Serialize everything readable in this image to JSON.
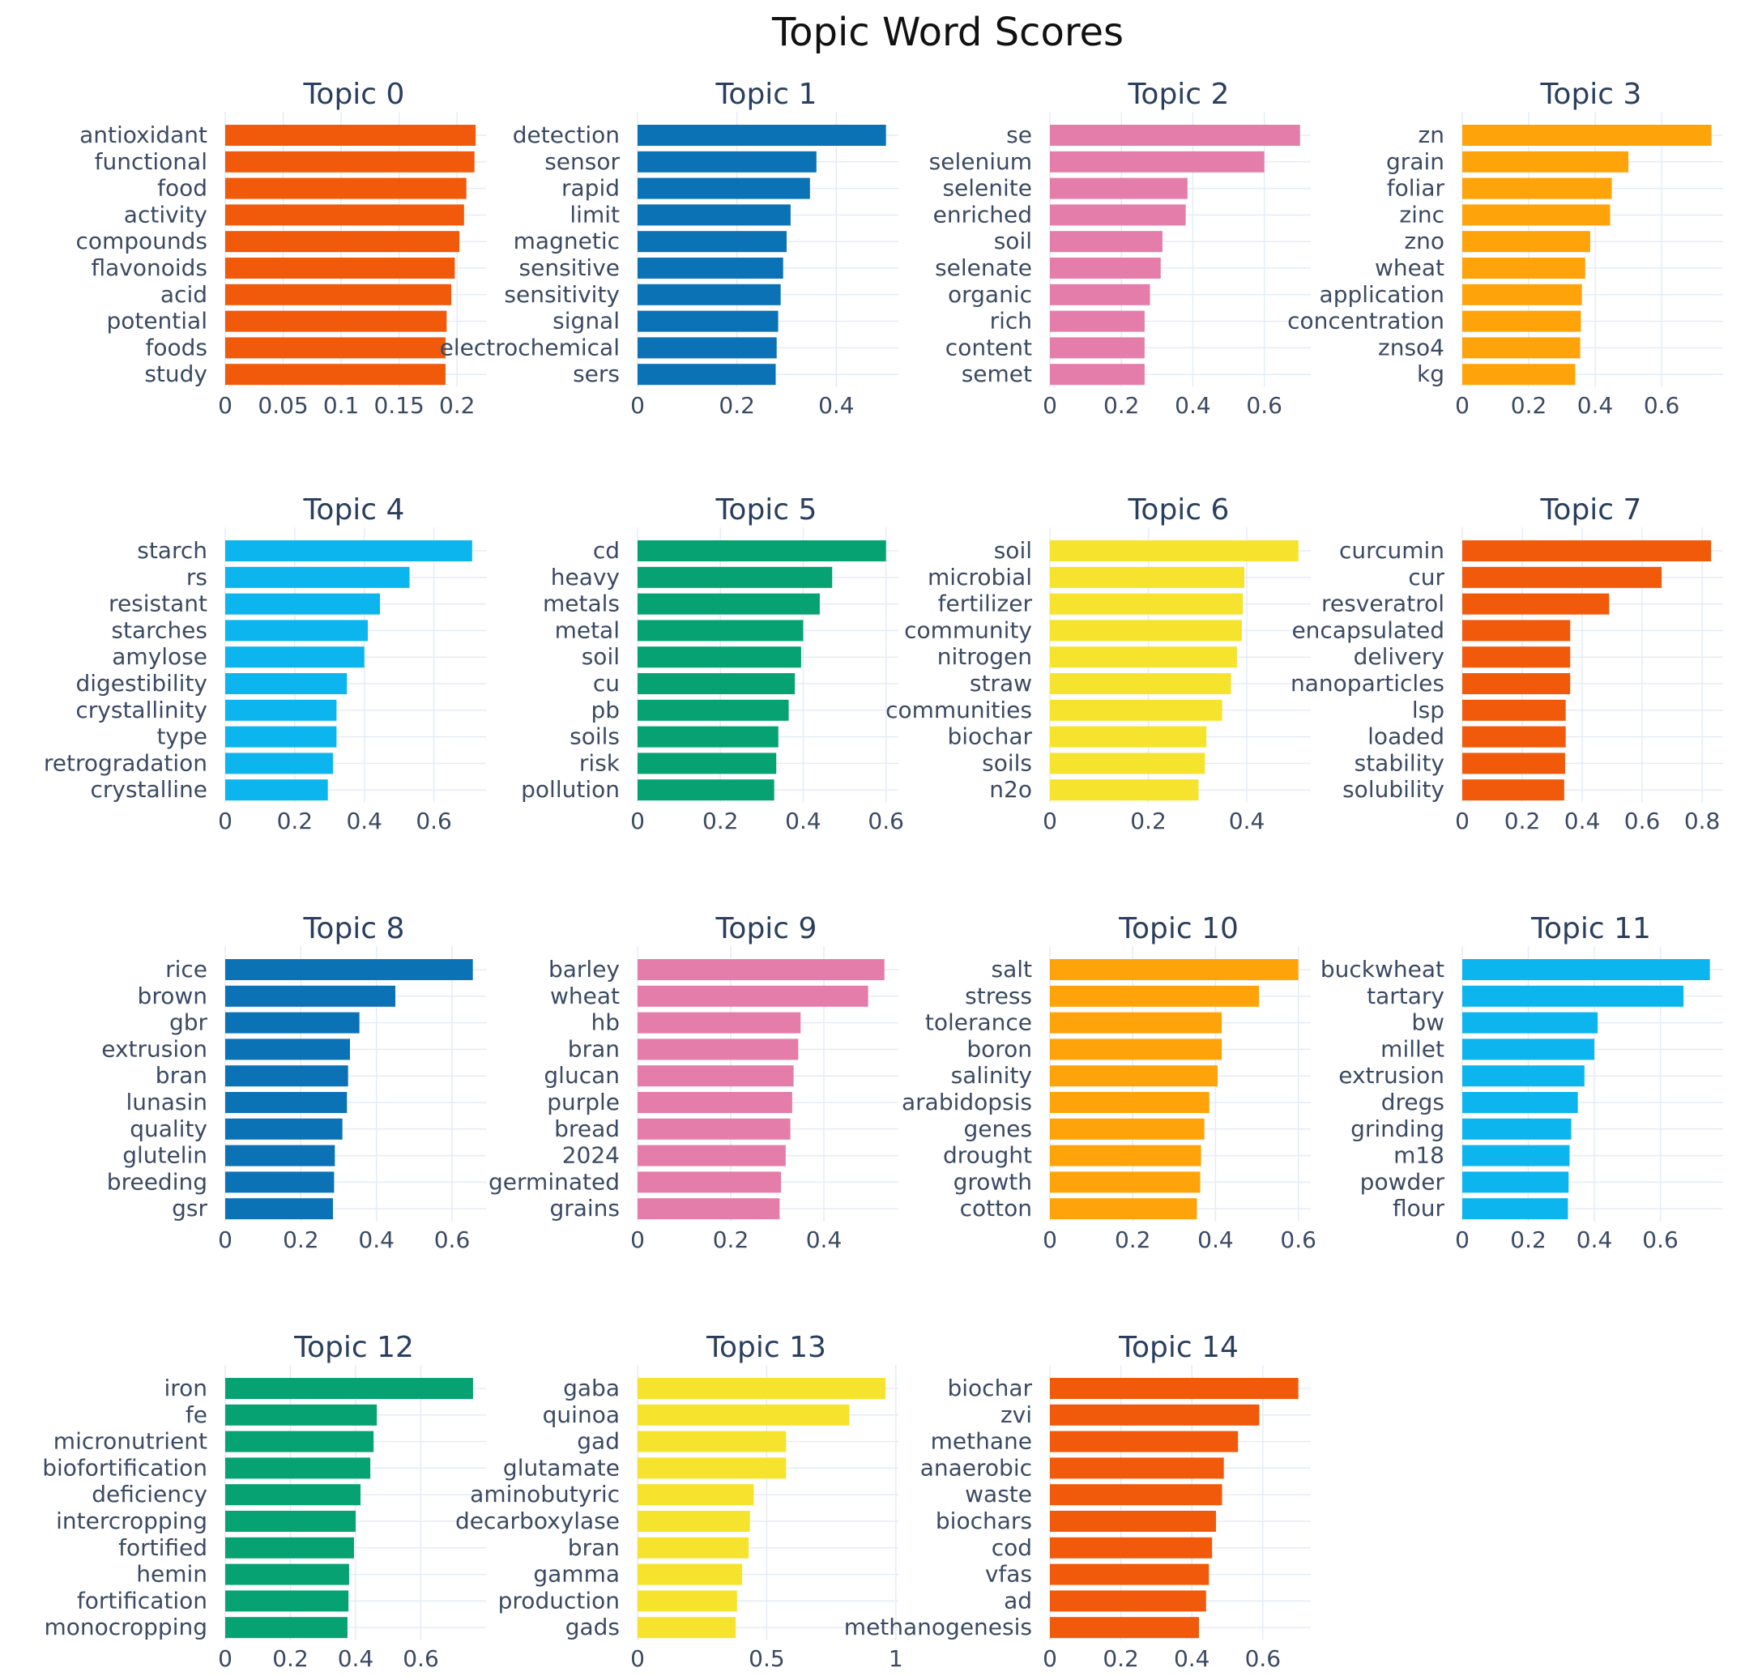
{
  "chart_data": {
    "type": "bar",
    "orientation": "horizontal",
    "title": "Topic Word Scores",
    "grid": true,
    "panels": [
      {
        "title": "Topic 0",
        "color": "#F05A0A",
        "categories": [
          "antioxidant",
          "functional",
          "food",
          "activity",
          "compounds",
          "flavonoids",
          "acid",
          "potential",
          "foods",
          "study"
        ],
        "values": [
          0.216,
          0.215,
          0.208,
          0.206,
          0.202,
          0.198,
          0.195,
          0.191,
          0.19,
          0.19
        ],
        "xlim": [
          0,
          0.225
        ],
        "ticks": [
          0,
          0.05,
          0.1,
          0.15,
          0.2
        ],
        "tick_labels": [
          "0",
          "0.05",
          "0.1",
          "0.15",
          "0.2"
        ]
      },
      {
        "title": "Topic 1",
        "color": "#0B72B5",
        "categories": [
          "detection",
          "sensor",
          "rapid",
          "limit",
          "magnetic",
          "sensitive",
          "sensitivity",
          "signal",
          "electrochemical",
          "sers"
        ],
        "values": [
          0.5,
          0.36,
          0.347,
          0.308,
          0.3,
          0.293,
          0.288,
          0.283,
          0.28,
          0.278
        ],
        "xlim": [
          0,
          0.525
        ],
        "ticks": [
          0,
          0.2,
          0.4
        ],
        "tick_labels": [
          "0",
          "0.2",
          "0.4"
        ]
      },
      {
        "title": "Topic 2",
        "color": "#E57DAB",
        "categories": [
          "se",
          "selenium",
          "selenite",
          "enriched",
          "soil",
          "selenate",
          "organic",
          "rich",
          "content",
          "semet"
        ],
        "values": [
          0.7,
          0.6,
          0.385,
          0.38,
          0.315,
          0.31,
          0.28,
          0.265,
          0.265,
          0.265
        ],
        "xlim": [
          0,
          0.73
        ],
        "ticks": [
          0,
          0.2,
          0.4,
          0.6
        ],
        "tick_labels": [
          "0",
          "0.2",
          "0.4",
          "0.6"
        ]
      },
      {
        "title": "Topic 3",
        "color": "#FEA40A",
        "categories": [
          "zn",
          "grain",
          "foliar",
          "zinc",
          "zno",
          "wheat",
          "application",
          "concentration",
          "znso4",
          "kg"
        ],
        "values": [
          0.75,
          0.5,
          0.45,
          0.445,
          0.385,
          0.37,
          0.36,
          0.357,
          0.355,
          0.34
        ],
        "xlim": [
          0,
          0.785
        ],
        "ticks": [
          0,
          0.2,
          0.4,
          0.6
        ],
        "tick_labels": [
          "0",
          "0.2",
          "0.4",
          "0.6"
        ]
      },
      {
        "title": "Topic 4",
        "color": "#0CB5EE",
        "categories": [
          "starch",
          "rs",
          "resistant",
          "starches",
          "amylose",
          "digestibility",
          "crystallinity",
          "type",
          "retrogradation",
          "crystalline"
        ],
        "values": [
          0.71,
          0.53,
          0.445,
          0.41,
          0.4,
          0.35,
          0.32,
          0.32,
          0.31,
          0.295
        ],
        "xlim": [
          0,
          0.75
        ],
        "ticks": [
          0,
          0.2,
          0.4,
          0.6
        ],
        "tick_labels": [
          "0",
          "0.2",
          "0.4",
          "0.6"
        ]
      },
      {
        "title": "Topic 5",
        "color": "#06A272",
        "categories": [
          "cd",
          "heavy",
          "metals",
          "metal",
          "soil",
          "cu",
          "pb",
          "soils",
          "risk",
          "pollution"
        ],
        "values": [
          0.6,
          0.47,
          0.44,
          0.4,
          0.395,
          0.38,
          0.365,
          0.34,
          0.335,
          0.33
        ],
        "xlim": [
          0,
          0.63
        ],
        "ticks": [
          0,
          0.2,
          0.4,
          0.6
        ],
        "tick_labels": [
          "0",
          "0.2",
          "0.4",
          "0.6"
        ]
      },
      {
        "title": "Topic 6",
        "color": "#F5E32D",
        "categories": [
          "soil",
          "microbial",
          "fertilizer",
          "community",
          "nitrogen",
          "straw",
          "communities",
          "biochar",
          "soils",
          "n2o"
        ],
        "values": [
          0.505,
          0.395,
          0.392,
          0.39,
          0.38,
          0.368,
          0.35,
          0.318,
          0.315,
          0.302
        ],
        "xlim": [
          0,
          0.53
        ],
        "ticks": [
          0,
          0.2,
          0.4
        ],
        "tick_labels": [
          "0",
          "0.2",
          "0.4"
        ]
      },
      {
        "title": "Topic 7",
        "color": "#F05A0A",
        "categories": [
          "curcumin",
          "cur",
          "resveratrol",
          "encapsulated",
          "delivery",
          "nanoparticles",
          "lsp",
          "loaded",
          "stability",
          "solubility"
        ],
        "values": [
          0.83,
          0.665,
          0.49,
          0.36,
          0.36,
          0.36,
          0.345,
          0.345,
          0.343,
          0.34
        ],
        "xlim": [
          0,
          0.87
        ],
        "ticks": [
          0,
          0.2,
          0.4,
          0.6,
          0.8
        ],
        "tick_labels": [
          "0",
          "0.2",
          "0.4",
          "0.6",
          "0.8"
        ]
      },
      {
        "title": "Topic 8",
        "color": "#0B72B5",
        "categories": [
          "rice",
          "brown",
          "gbr",
          "extrusion",
          "bran",
          "lunasin",
          "quality",
          "glutelin",
          "breeding",
          "gsr"
        ],
        "values": [
          0.655,
          0.45,
          0.355,
          0.33,
          0.325,
          0.322,
          0.31,
          0.29,
          0.288,
          0.285
        ],
        "xlim": [
          0,
          0.69
        ],
        "ticks": [
          0,
          0.2,
          0.4,
          0.6
        ],
        "tick_labels": [
          "0",
          "0.2",
          "0.4",
          "0.6"
        ]
      },
      {
        "title": "Topic 9",
        "color": "#E57DAB",
        "categories": [
          "barley",
          "wheat",
          "hb",
          "bran",
          "glucan",
          "purple",
          "bread",
          "2024",
          "germinated",
          "grains"
        ],
        "values": [
          0.53,
          0.495,
          0.35,
          0.345,
          0.335,
          0.332,
          0.328,
          0.318,
          0.308,
          0.305
        ],
        "xlim": [
          0,
          0.56
        ],
        "ticks": [
          0,
          0.2,
          0.4
        ],
        "tick_labels": [
          "0",
          "0.2",
          "0.4"
        ]
      },
      {
        "title": "Topic 10",
        "color": "#FEA40A",
        "categories": [
          "salt",
          "stress",
          "tolerance",
          "boron",
          "salinity",
          "arabidopsis",
          "genes",
          "drought",
          "growth",
          "cotton"
        ],
        "values": [
          0.6,
          0.505,
          0.415,
          0.415,
          0.405,
          0.385,
          0.373,
          0.365,
          0.363,
          0.355
        ],
        "xlim": [
          0,
          0.63
        ],
        "ticks": [
          0,
          0.2,
          0.4,
          0.6
        ],
        "tick_labels": [
          "0",
          "0.2",
          "0.4",
          "0.6"
        ]
      },
      {
        "title": "Topic 11",
        "color": "#0CB5EE",
        "categories": [
          "buckwheat",
          "tartary",
          "bw",
          "millet",
          "extrusion",
          "dregs",
          "grinding",
          "m18",
          "powder",
          "flour"
        ],
        "values": [
          0.75,
          0.67,
          0.41,
          0.4,
          0.37,
          0.35,
          0.33,
          0.325,
          0.322,
          0.32
        ],
        "xlim": [
          0,
          0.79
        ],
        "ticks": [
          0,
          0.2,
          0.4,
          0.6
        ],
        "tick_labels": [
          "0",
          "0.2",
          "0.4",
          "0.6"
        ]
      },
      {
        "title": "Topic 12",
        "color": "#06A272",
        "categories": [
          "iron",
          "fe",
          "micronutrient",
          "biofortification",
          "deficiency",
          "intercropping",
          "fortified",
          "hemin",
          "fortification",
          "monocropping"
        ],
        "values": [
          0.76,
          0.465,
          0.455,
          0.445,
          0.415,
          0.4,
          0.395,
          0.38,
          0.378,
          0.375
        ],
        "xlim": [
          0,
          0.8
        ],
        "ticks": [
          0,
          0.2,
          0.4,
          0.6
        ],
        "tick_labels": [
          "0",
          "0.2",
          "0.4",
          "0.6"
        ]
      },
      {
        "title": "Topic 13",
        "color": "#F5E32D",
        "categories": [
          "gaba",
          "quinoa",
          "gad",
          "glutamate",
          "aminobutyric",
          "decarboxylase",
          "bran",
          "gamma",
          "production",
          "gads"
        ],
        "values": [
          0.96,
          0.82,
          0.575,
          0.575,
          0.45,
          0.435,
          0.43,
          0.405,
          0.385,
          0.38
        ],
        "xlim": [
          0,
          1.01
        ],
        "ticks": [
          0,
          0.5,
          1
        ],
        "tick_labels": [
          "0",
          "0.5",
          "1"
        ]
      },
      {
        "title": "Topic 14",
        "color": "#F05A0A",
        "categories": [
          "biochar",
          "zvi",
          "methane",
          "anaerobic",
          "waste",
          "biochars",
          "cod",
          "vfas",
          "ad",
          "methanogenesis"
        ],
        "values": [
          0.7,
          0.59,
          0.53,
          0.49,
          0.485,
          0.468,
          0.457,
          0.448,
          0.44,
          0.42
        ],
        "xlim": [
          0,
          0.735
        ],
        "ticks": [
          0,
          0.2,
          0.4,
          0.6
        ],
        "tick_labels": [
          "0",
          "0.2",
          "0.4",
          "0.6"
        ]
      }
    ]
  }
}
